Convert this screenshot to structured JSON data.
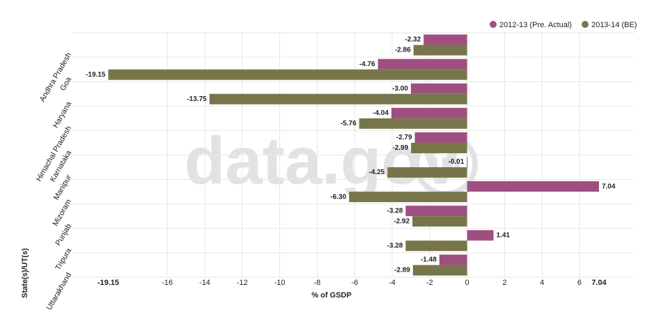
{
  "chart_data": {
    "type": "hbar",
    "categories": [
      "Andhra Pradesh",
      "Goa",
      "Haryana",
      "Himachal Pradesh",
      "Karnataka",
      "Manipur",
      "Mizoram",
      "Punjab",
      "Tripura",
      "Uttarakhand"
    ],
    "series": [
      {
        "name": "2012-13 (Pre. Actual)",
        "color": "#9e4f80",
        "values": [
          -2.32,
          -4.76,
          -3.0,
          -4.04,
          -2.79,
          -0.01,
          7.04,
          -3.28,
          1.41,
          -1.48
        ],
        "value_labels": [
          "-2.32",
          "-4.76",
          "-3.00",
          "-4.04",
          "-2.79",
          "-0.01",
          "7.04",
          "-3.28",
          "1.41",
          "-1.48"
        ]
      },
      {
        "name": "2013-14 (BE)",
        "color": "#77764a",
        "values": [
          -2.86,
          -19.15,
          -13.75,
          -5.76,
          -2.99,
          -4.25,
          -6.3,
          -2.92,
          -3.28,
          -2.89
        ],
        "value_labels": [
          "-2.86",
          "-19.15",
          "-13.75",
          "-5.76",
          "-2.99",
          "-4.25",
          "-6.30",
          "-2.92",
          "-3.28",
          "-2.89"
        ]
      }
    ],
    "xlim": [
      -21.1,
      8.9
    ],
    "xticks": [
      -19.15,
      -16,
      -14,
      -12,
      -10,
      -8,
      -6,
      -4,
      -2,
      0,
      2,
      4,
      6,
      7.04
    ],
    "xlabel": "% of GSDP",
    "ylabel": "State(s)/UT(s)",
    "grid": true,
    "legend": "top-right",
    "watermark": {
      "text": "data.gov",
      "logo": "in"
    }
  }
}
